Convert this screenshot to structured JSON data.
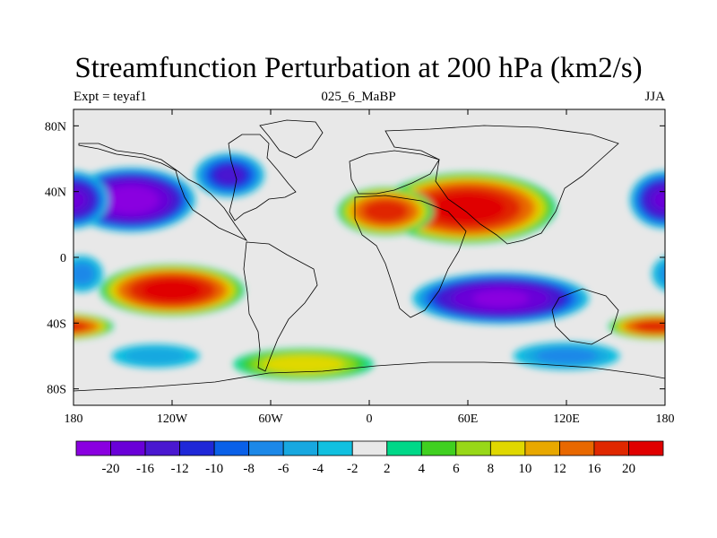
{
  "title": "Streamfunction Perturbation at 200 hPa (km2/s)",
  "left_string": "Expt = teyaf1",
  "center_string": "025_6_MaBP",
  "right_string": "JJA",
  "map": {
    "lon_range": [
      -180,
      180
    ],
    "lat_range": [
      -90,
      90
    ],
    "lon_ticks": [
      {
        "value": -180,
        "label": "180"
      },
      {
        "value": -120,
        "label": "120W"
      },
      {
        "value": -60,
        "label": "60W"
      },
      {
        "value": 0,
        "label": "0"
      },
      {
        "value": 60,
        "label": "60E"
      },
      {
        "value": 120,
        "label": "120E"
      },
      {
        "value": 180,
        "label": "180"
      }
    ],
    "lat_ticks": [
      {
        "value": 80,
        "label": "80N"
      },
      {
        "value": 40,
        "label": "40N"
      },
      {
        "value": 0,
        "label": "0"
      },
      {
        "value": -40,
        "label": "40S"
      },
      {
        "value": -80,
        "label": "80S"
      }
    ],
    "background_color": "#e8e8e8"
  },
  "colorbar": {
    "labels": [
      "-20",
      "-16",
      "-12",
      "-10",
      "-8",
      "-6",
      "-4",
      "-2",
      "2",
      "4",
      "6",
      "8",
      "10",
      "12",
      "16",
      "20"
    ],
    "colors": [
      "#8a00e0",
      "#6a00d8",
      "#4a18d0",
      "#1f28d8",
      "#0a60e8",
      "#1c88e8",
      "#18a8e0",
      "#10c0e0",
      "#e8e8e8",
      "#00d888",
      "#40d020",
      "#98d818",
      "#e0d800",
      "#e8a800",
      "#e86800",
      "#e02800",
      "#e00000"
    ]
  },
  "chart_data": {
    "type": "heatmap",
    "field": "streamfunction perturbation",
    "units": "km2/s",
    "level": "200 hPa",
    "levels": [
      -20,
      -16,
      -12,
      -10,
      -8,
      -6,
      -4,
      -2,
      2,
      4,
      6,
      8,
      10,
      12,
      16,
      20
    ],
    "features": [
      {
        "kind": "high",
        "lon": 60,
        "lat": 30,
        "peak": 22,
        "lon_radius": 55,
        "lat_radius": 22
      },
      {
        "kind": "high",
        "lon": 10,
        "lat": 28,
        "peak": 18,
        "lon_radius": 30,
        "lat_radius": 15
      },
      {
        "kind": "low",
        "lon": -145,
        "lat": 35,
        "peak": -22,
        "lon_radius": 40,
        "lat_radius": 20
      },
      {
        "kind": "low",
        "lon": -85,
        "lat": 50,
        "peak": -12,
        "lon_radius": 22,
        "lat_radius": 14
      },
      {
        "kind": "low",
        "lon": 180,
        "lat": 35,
        "peak": -16,
        "lon_radius": 22,
        "lat_radius": 18
      },
      {
        "kind": "high",
        "lon": -120,
        "lat": -20,
        "peak": 22,
        "lon_radius": 45,
        "lat_radius": 16
      },
      {
        "kind": "high",
        "lon": 175,
        "lat": -42,
        "peak": 18,
        "lon_radius": 30,
        "lat_radius": 8
      },
      {
        "kind": "low",
        "lon": 80,
        "lat": -25,
        "peak": -20,
        "lon_radius": 55,
        "lat_radius": 16
      },
      {
        "kind": "high",
        "lon": -40,
        "lat": -65,
        "peak": 9,
        "lon_radius": 45,
        "lat_radius": 10
      },
      {
        "kind": "low",
        "lon": 120,
        "lat": -60,
        "peak": -6,
        "lon_radius": 35,
        "lat_radius": 9
      },
      {
        "kind": "low",
        "lon": -130,
        "lat": -60,
        "peak": -4,
        "lon_radius": 30,
        "lat_radius": 8
      },
      {
        "kind": "low",
        "lon": -175,
        "lat": -10,
        "peak": -6,
        "lon_radius": 14,
        "lat_radius": 12
      }
    ]
  }
}
